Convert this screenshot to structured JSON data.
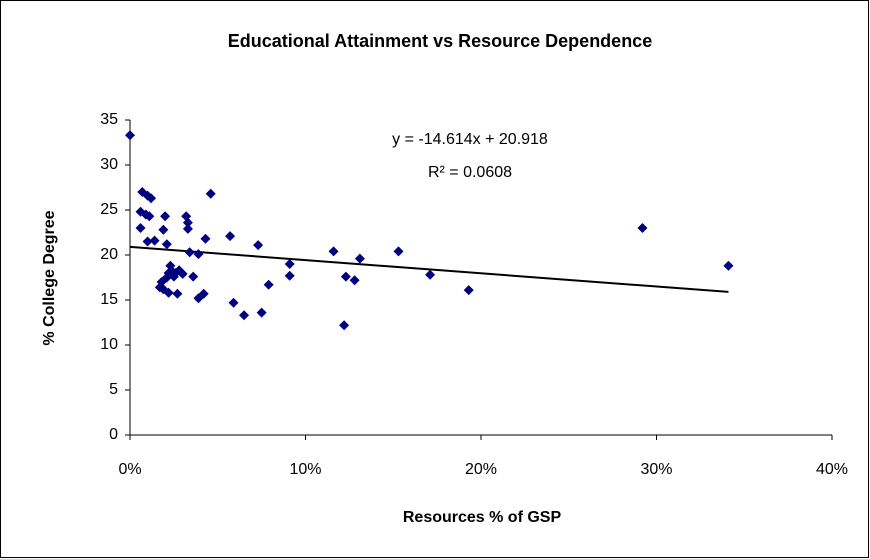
{
  "chart_data": {
    "type": "scatter",
    "title": "Educational Attainment vs Resource Dependence",
    "x_label": "Resources % of GSP",
    "y_label": "% College Degree",
    "annotations": [
      "y = -14.614x + 20.918",
      "R² = 0.0608"
    ],
    "color": "#000080",
    "x": [
      0.0,
      0.007,
      0.01,
      0.012,
      0.006,
      0.009,
      0.011,
      0.006,
      0.01,
      0.014,
      0.019,
      0.02,
      0.021,
      0.018,
      0.017,
      0.019,
      0.021,
      0.022,
      0.023,
      0.022,
      0.024,
      0.025,
      0.026,
      0.027,
      0.028,
      0.03,
      0.032,
      0.033,
      0.033,
      0.034,
      0.036,
      0.039,
      0.039,
      0.042,
      0.043,
      0.046,
      0.057,
      0.059,
      0.065,
      0.073,
      0.075,
      0.079,
      0.091,
      0.091,
      0.116,
      0.122,
      0.123,
      0.128,
      0.131,
      0.153,
      0.171,
      0.193,
      0.292,
      0.341
    ],
    "values": [
      33.3,
      27.0,
      26.6,
      26.3,
      24.8,
      24.5,
      24.3,
      23.0,
      21.5,
      21.6,
      22.8,
      24.3,
      21.2,
      17.0,
      16.4,
      16.2,
      17.5,
      18.0,
      18.8,
      15.8,
      18.2,
      17.6,
      18.0,
      15.7,
      18.3,
      17.9,
      24.3,
      23.6,
      22.9,
      20.3,
      17.6,
      20.1,
      15.2,
      15.7,
      21.8,
      26.8,
      22.1,
      14.7,
      13.3,
      21.1,
      13.6,
      16.7,
      19.0,
      17.7,
      20.4,
      12.2,
      17.6,
      17.2,
      19.6,
      20.4,
      17.8,
      16.1,
      23.0,
      18.8
    ],
    "trendline": {
      "color": "#000000",
      "x": [
        0,
        0.341
      ],
      "values": [
        20.9,
        15.9
      ]
    },
    "xlim": [
      0,
      0.4
    ],
    "xticks": [
      {
        "value": 0,
        "label": "0%"
      },
      {
        "value": 0.1,
        "label": "10%"
      },
      {
        "value": 0.2,
        "label": "20%"
      },
      {
        "value": 0.3,
        "label": "30%"
      },
      {
        "value": 0.4,
        "label": "40%"
      }
    ],
    "ylim": [
      0,
      35
    ],
    "yticks": [
      0,
      5,
      10,
      15,
      20,
      25,
      30,
      35
    ],
    "grid": false
  }
}
